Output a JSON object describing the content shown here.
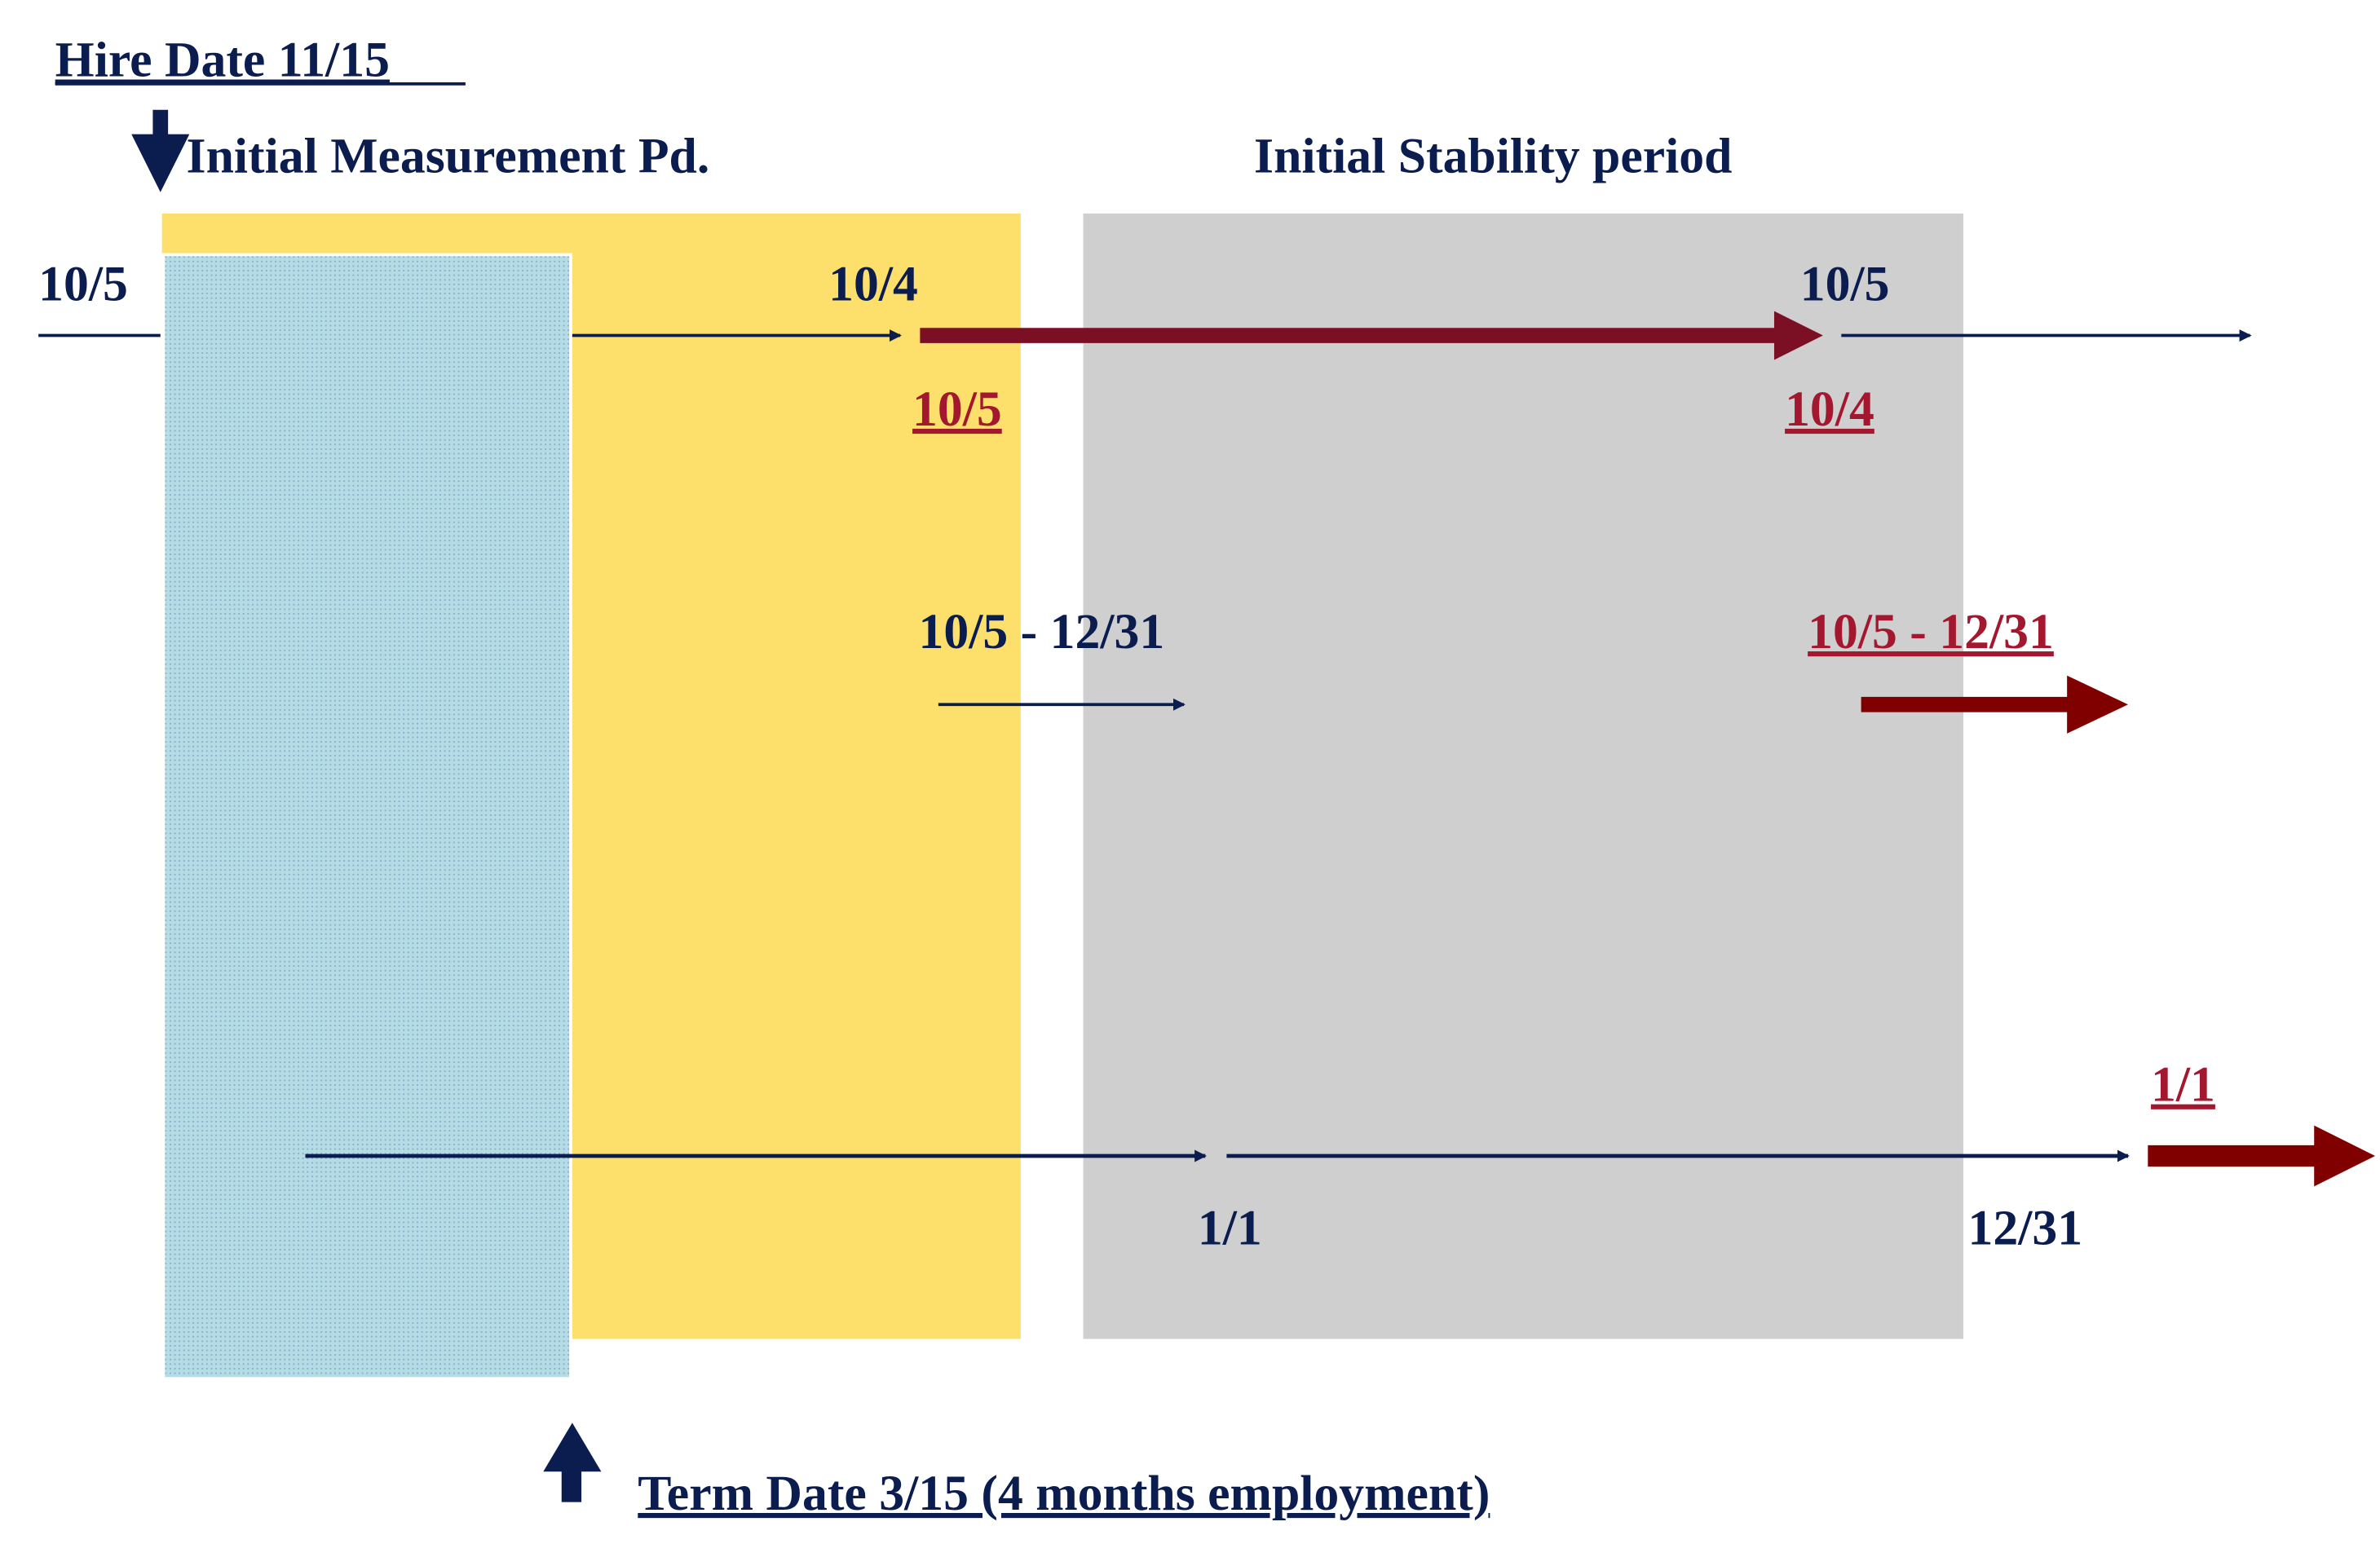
{
  "colors": {
    "navy": "#0b1d4f",
    "red_text": "#a3182f",
    "red_arrow_row1": "#7b1025",
    "red_arrow": "#800000",
    "measurement_period": "#fde06b",
    "stability_period": "#cfcfcf",
    "employment_block": "#b4dce4"
  },
  "header": {
    "hire_date": "Hire Date 11/15",
    "initial_measurement": "Initial Measurement Pd.",
    "initial_stability": "Initial Stability period"
  },
  "row1": {
    "start": "10/5",
    "measurement_end": "10/4",
    "next_start": "10/5",
    "stability_start": "10/5",
    "stability_end": "10/4"
  },
  "row2": {
    "range": "10/5 - 12/31",
    "red_range": "10/5 - 12/31"
  },
  "row3": {
    "year_start": "1/1",
    "year_end": "12/31",
    "red_start": "1/1"
  },
  "footer": {
    "term_date": "Term Date 3/15 (4 months employment)"
  },
  "icons": {
    "hire_arrow": "arrow-down-icon",
    "term_arrow": "arrow-up-icon"
  }
}
